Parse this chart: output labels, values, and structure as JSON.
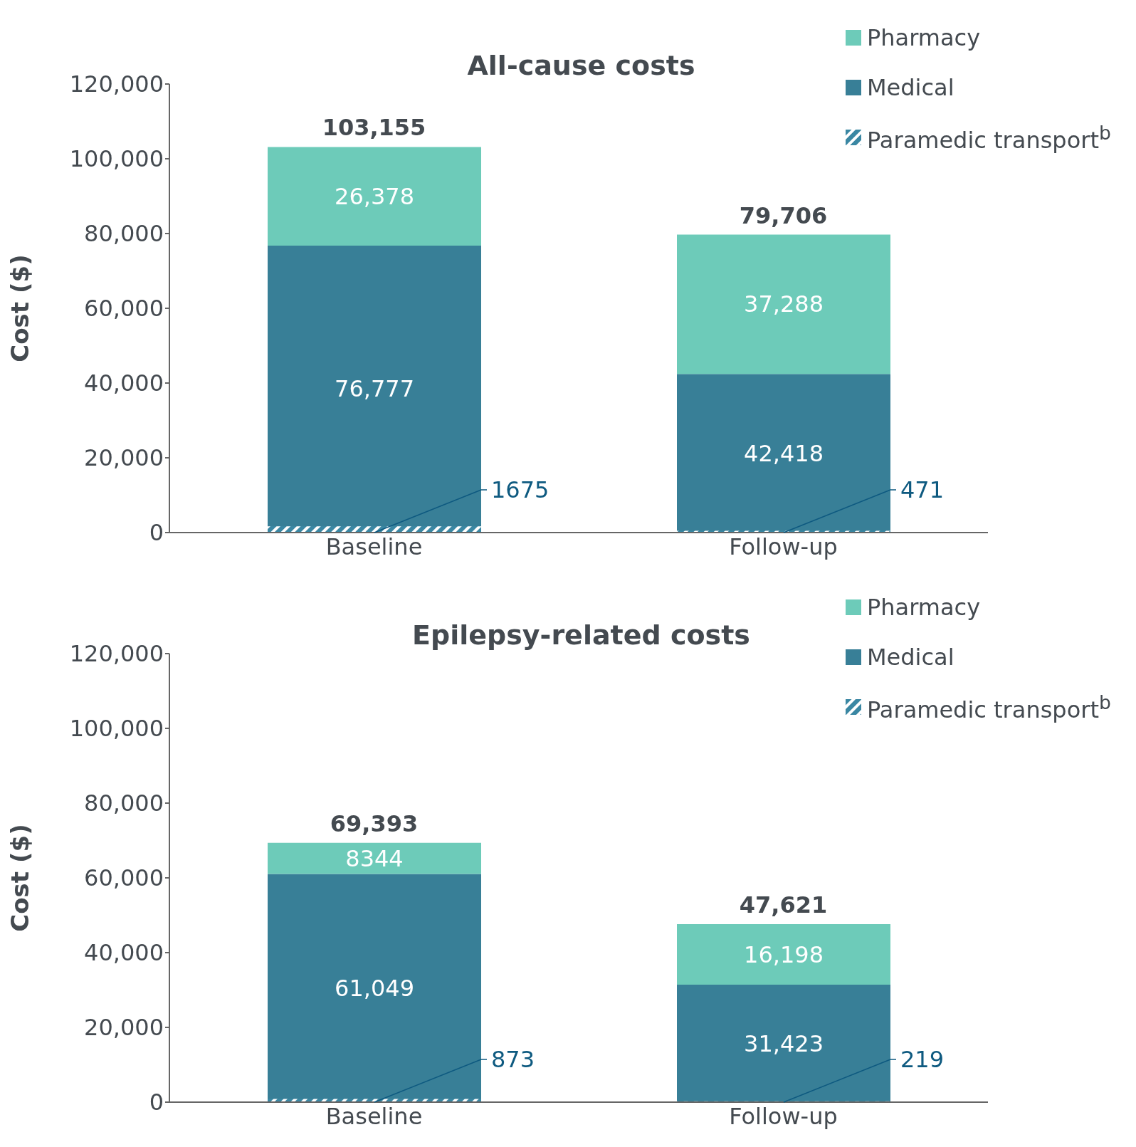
{
  "chart_data": [
    {
      "type": "bar",
      "title": "All-cause costs",
      "ylabel": "Cost ($)",
      "categories": [
        "Baseline",
        "Follow-up"
      ],
      "legend": "top right",
      "ylim": [
        0,
        120000
      ],
      "yticks": [
        {
          "value": 0,
          "label": "0"
        },
        {
          "value": 20000,
          "label": "20,000"
        },
        {
          "value": 40000,
          "label": "40,000"
        },
        {
          "value": 60000,
          "label": "60,000"
        },
        {
          "value": 80000,
          "label": "80,000"
        },
        {
          "value": 100000,
          "label": "100,000"
        },
        {
          "value": 120000,
          "label": "120,000"
        }
      ],
      "annotations": [
        {
          "text": "103,155",
          "x": "Baseline",
          "y": 103155
        },
        {
          "text": "79,706",
          "x": "Follow-up",
          "y": 79706
        }
      ],
      "series": [
        {
          "name": "Medical",
          "color": "#387f97",
          "base": [
            0,
            0
          ],
          "values": [
            76777,
            42418
          ],
          "value_labels": [
            "76,777",
            "42,418"
          ]
        },
        {
          "name": "Pharmacy",
          "color": "#6dcbb9",
          "base": [
            76777,
            42418
          ],
          "values": [
            26378,
            37288
          ],
          "value_labels": [
            "26,378",
            "37,288"
          ]
        },
        {
          "name": "Paramedic transport$^{b}$",
          "color": "#3a87a3",
          "base": [
            0,
            0
          ],
          "values": [
            1675,
            471
          ],
          "value_labels": [
            "1675",
            "471"
          ]
        }
      ]
    },
    {
      "type": "bar",
      "title": "Epilepsy-related costs",
      "ylabel": "Cost ($)",
      "categories": [
        "Baseline",
        "Follow-up"
      ],
      "legend": "top right",
      "ylim": [
        0,
        120000
      ],
      "yticks": [
        {
          "value": 0,
          "label": "0"
        },
        {
          "value": 20000,
          "label": "20,000"
        },
        {
          "value": 40000,
          "label": "40,000"
        },
        {
          "value": 60000,
          "label": "60,000"
        },
        {
          "value": 80000,
          "label": "80,000"
        },
        {
          "value": 100000,
          "label": "100,000"
        },
        {
          "value": 120000,
          "label": "120,000"
        }
      ],
      "annotations": [
        {
          "text": "69,393",
          "x": "Baseline",
          "y": 69393
        },
        {
          "text": "47,621",
          "x": "Follow-up",
          "y": 47621
        }
      ],
      "series": [
        {
          "name": "Medical",
          "color": "#387f97",
          "base": [
            0,
            0
          ],
          "values": [
            61049,
            31423
          ],
          "value_labels": [
            "61,049",
            "31,423"
          ]
        },
        {
          "name": "Pharmacy",
          "color": "#6dcbb9",
          "base": [
            61049,
            31423
          ],
          "values": [
            8344,
            16198
          ],
          "value_labels": [
            "8344",
            "16,198"
          ]
        },
        {
          "name": "Paramedic transport$^{b}$",
          "color": "#3a87a3",
          "base": [
            0,
            0
          ],
          "values": [
            873,
            219
          ],
          "value_labels": [
            "873",
            "219"
          ]
        }
      ]
    }
  ]
}
